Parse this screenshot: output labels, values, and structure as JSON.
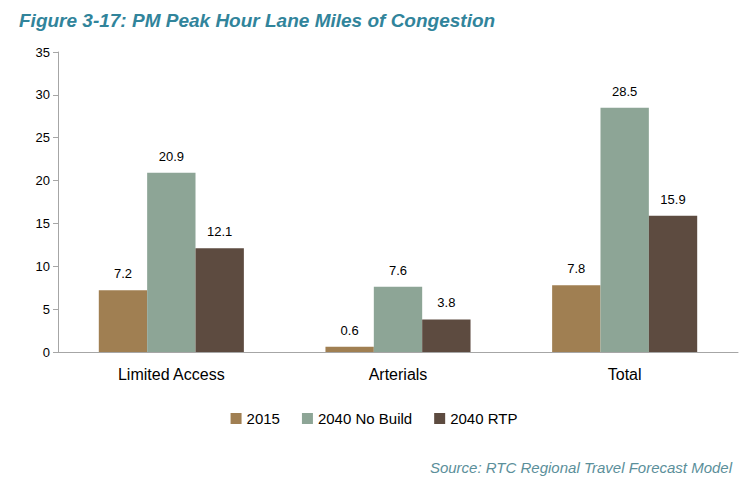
{
  "chart_data": {
    "type": "bar",
    "title": "Figure 3-17: PM Peak Hour Lane Miles of Congestion",
    "annotations": [
      "Source: RTC Regional Travel Forecast Model"
    ],
    "categories": [
      "Limited Access",
      "Arterials",
      "Total"
    ],
    "series": [
      {
        "name": "2015",
        "color": "#a07f52",
        "values": [
          7.2,
          0.6,
          7.8
        ]
      },
      {
        "name": "2040 No Build",
        "color": "#8da596",
        "values": [
          20.9,
          7.6,
          28.5
        ]
      },
      {
        "name": "2040 RTP",
        "color": "#5d4b40",
        "values": [
          12.1,
          3.8,
          15.9
        ]
      }
    ],
    "ylim": [
      0,
      35
    ],
    "yticks": [
      0,
      5,
      10,
      15,
      20,
      25,
      30,
      35
    ],
    "grid": false,
    "legend": "bottom",
    "data_labels": true
  }
}
